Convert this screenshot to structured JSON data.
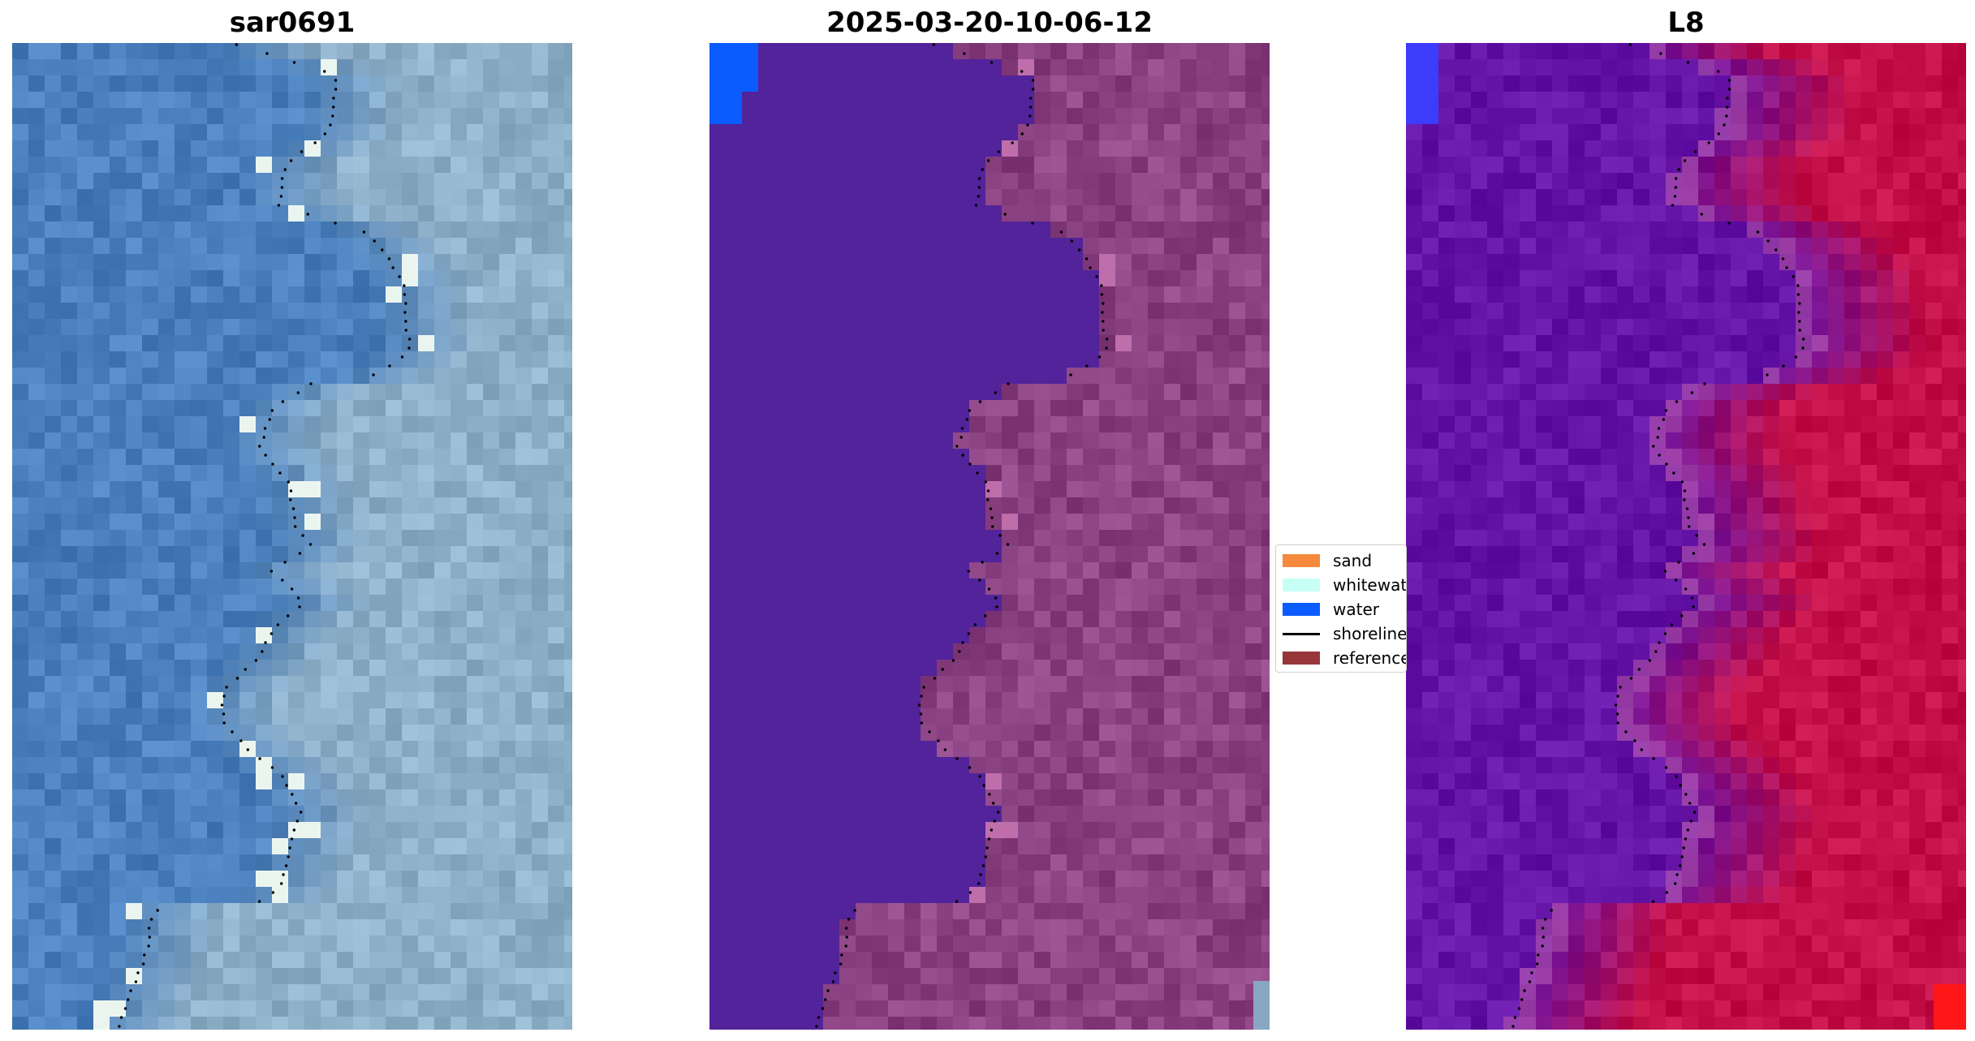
{
  "panels": [
    {
      "title": "sar0691",
      "style": "rgb"
    },
    {
      "title": "2025-03-20-10-06-12",
      "style": "classified"
    },
    {
      "title": "L8",
      "style": "index"
    }
  ],
  "legend": {
    "items": [
      {
        "label": "sand",
        "kind": "patch",
        "color": "#f58a3c"
      },
      {
        "label": "whitewat",
        "kind": "patch",
        "color": "#c8fff4"
      },
      {
        "label": "water",
        "kind": "patch",
        "color": "#0a5cff"
      },
      {
        "label": "shoreline",
        "kind": "line",
        "color": "#000000"
      },
      {
        "label": "reference",
        "kind": "patch",
        "color": "#96363a"
      }
    ]
  },
  "colors": {
    "land_rgb": "#8fb0c9",
    "water_rgb": "#4a80bd",
    "land_classified": "#8a4282",
    "water_classified": "#52239a",
    "water_blue": "#0a5cff",
    "land_index": "#c41048",
    "water_index": "#6514a8",
    "index_high": "#ff1616"
  }
}
